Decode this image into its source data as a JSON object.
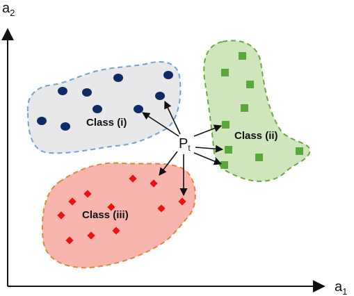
{
  "axes": {
    "y_label": "a",
    "y_sub": "2",
    "x_label": "a",
    "x_sub": "1"
  },
  "query_point": {
    "label": "P",
    "sub": "t"
  },
  "clusters": [
    {
      "id": "class-i",
      "label": "Class (i)",
      "marker": "circle",
      "fill_color": "#e8e8ea",
      "border_color": "#6fa3d6",
      "point_color": "#0f2a66"
    },
    {
      "id": "class-ii",
      "label": "Class (ii)",
      "marker": "square",
      "fill_color": "#cfe6bd",
      "border_color": "#6ea844",
      "point_color": "#5aa83c"
    },
    {
      "id": "class-iii",
      "label": "Class (iii)",
      "marker": "diamond",
      "fill_color": "#f7b5ad",
      "border_color": "#e0853a",
      "point_color": "#ee1111"
    }
  ]
}
